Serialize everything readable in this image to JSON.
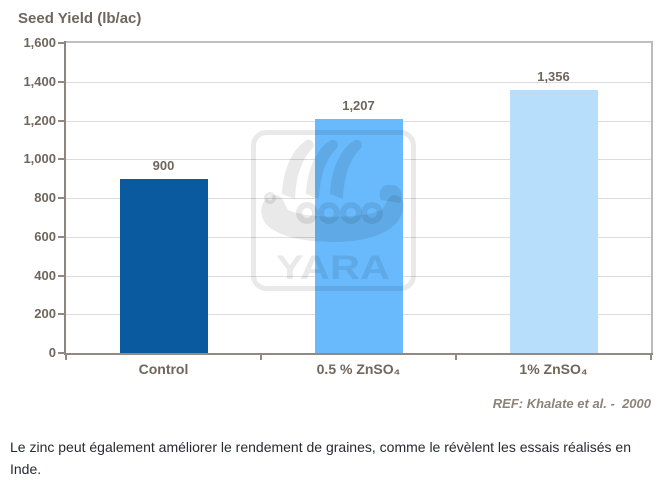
{
  "page": {
    "caption": "Le zinc peut également améliorer le rendement de graines, comme le révèlent les essais réalisés en Inde."
  },
  "chart_data": {
    "type": "bar",
    "title": "Seed Yield (lb/ac)",
    "categories": [
      "Control",
      "0.5 % ZnSO₄",
      "1% ZnSO₄"
    ],
    "values": [
      900,
      1207,
      1356
    ],
    "value_labels": [
      "900",
      "1,207",
      "1,356"
    ],
    "bar_colors": [
      "#0a5aa0",
      "#68bafc",
      "#b7dffc"
    ],
    "xlabel": "",
    "ylabel": "Seed Yield (lb/ac)",
    "ylim": [
      0,
      1600
    ],
    "ytick_interval": 200,
    "ytick_labels": [
      "0",
      "200",
      "400",
      "600",
      "800",
      "1,000",
      "1,200",
      "1,400",
      "1,600"
    ],
    "grid": true,
    "legend": null,
    "reference": "REF: Khalate et al. -  2000",
    "watermark_text": "YARA"
  },
  "style": {
    "label_color": "#6f665c",
    "ref_color": "#8c8379",
    "caption_color": "#262b33",
    "grid_color": "#dcdcdc",
    "axis_color": "#8f8a84",
    "wall_border_color": "#c1c0bf"
  }
}
